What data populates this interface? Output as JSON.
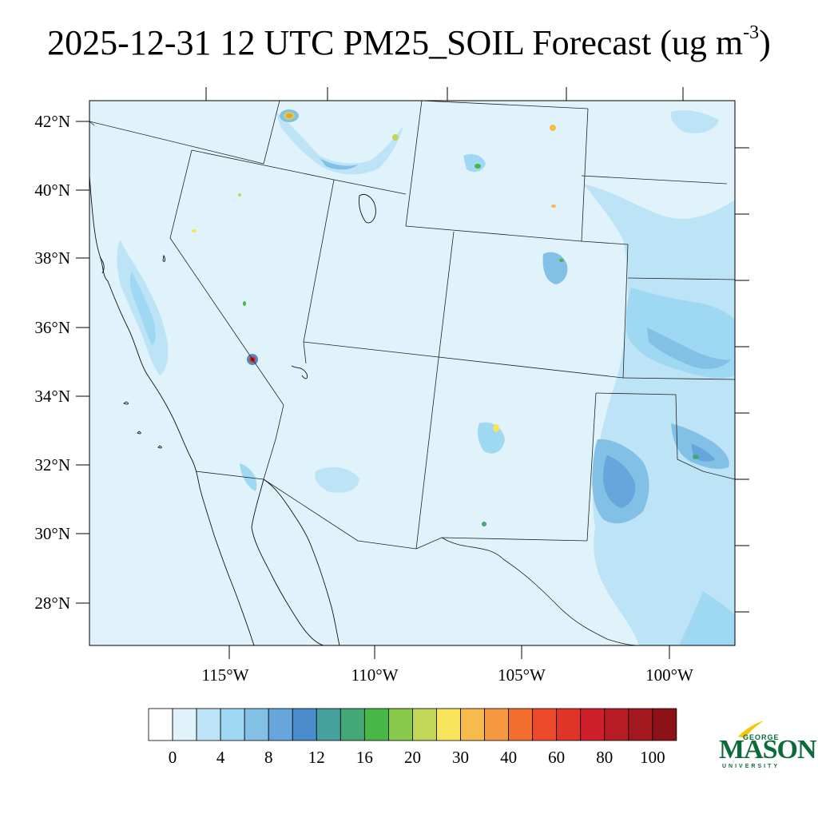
{
  "title": {
    "main": "2025-12-31 12 UTC PM25_SOIL Forecast (ug m",
    "superscript": "-3",
    "close": ")"
  },
  "map": {
    "lat_labels": [
      "42°N",
      "40°N",
      "38°N",
      "36°N",
      "34°N",
      "32°N",
      "30°N",
      "28°N"
    ],
    "lon_labels": [
      "115°W",
      "110°W",
      "105°W",
      "100°W"
    ],
    "background_color": "#e0f3fb",
    "hotspots": [
      {
        "place": "Southern Idaho",
        "value_class": "40"
      },
      {
        "place": "Southern Nevada",
        "value_class": "60"
      },
      {
        "place": "Wyoming",
        "value_class": "20"
      },
      {
        "place": "Southern New Mexico",
        "value_class": "20"
      },
      {
        "place": "West Texas",
        "value_class": "16"
      }
    ]
  },
  "colorbar": {
    "colors": [
      "#ffffff",
      "#e0f3fb",
      "#bde4f6",
      "#9fd8f2",
      "#82c0e6",
      "#67a6dc",
      "#4a8ccc",
      "#45a19d",
      "#44a876",
      "#48b747",
      "#88c94b",
      "#c2d657",
      "#f8e45a",
      "#f7bb4d",
      "#f69840",
      "#f36d2d",
      "#ec4a2a",
      "#e13428",
      "#cf1f2b",
      "#b71b24",
      "#a3181f",
      "#8c1218"
    ],
    "labels": [
      "0",
      "4",
      "8",
      "12",
      "16",
      "20",
      "30",
      "40",
      "60",
      "80",
      "100"
    ]
  },
  "logo": {
    "george": "GEORGE",
    "mason": "MASON",
    "university": "UNIVERSITY",
    "brand_color": "#0c6b3a",
    "accent_color": "#f2c80f"
  }
}
